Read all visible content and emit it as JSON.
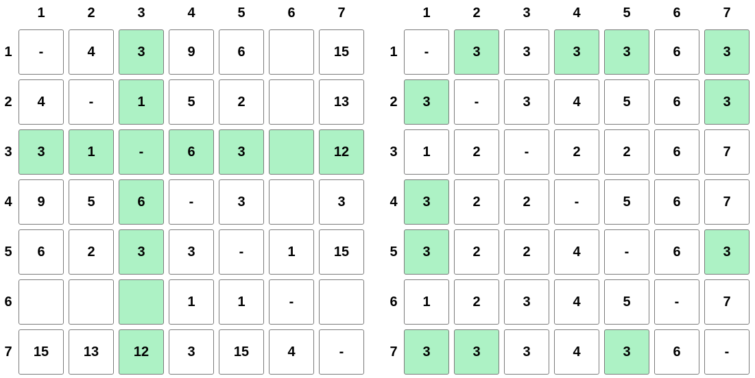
{
  "colors": {
    "highlight": "#adf2c5",
    "cell_bg": "#ffffff",
    "border": "#7a7a7a"
  },
  "matrices": [
    {
      "col_labels": [
        "1",
        "2",
        "3",
        "4",
        "5",
        "6",
        "7"
      ],
      "row_labels": [
        "1",
        "2",
        "3",
        "4",
        "5",
        "6",
        "7"
      ],
      "cells": [
        [
          {
            "v": "-",
            "h": false
          },
          {
            "v": "4",
            "h": false
          },
          {
            "v": "3",
            "h": true
          },
          {
            "v": "9",
            "h": false
          },
          {
            "v": "6",
            "h": false
          },
          {
            "v": "",
            "h": false
          },
          {
            "v": "15",
            "h": false
          }
        ],
        [
          {
            "v": "4",
            "h": false
          },
          {
            "v": "-",
            "h": false
          },
          {
            "v": "1",
            "h": true
          },
          {
            "v": "5",
            "h": false
          },
          {
            "v": "2",
            "h": false
          },
          {
            "v": "",
            "h": false
          },
          {
            "v": "13",
            "h": false
          }
        ],
        [
          {
            "v": "3",
            "h": true
          },
          {
            "v": "1",
            "h": true
          },
          {
            "v": "-",
            "h": true
          },
          {
            "v": "6",
            "h": true
          },
          {
            "v": "3",
            "h": true
          },
          {
            "v": "",
            "h": true
          },
          {
            "v": "12",
            "h": true
          }
        ],
        [
          {
            "v": "9",
            "h": false
          },
          {
            "v": "5",
            "h": false
          },
          {
            "v": "6",
            "h": true
          },
          {
            "v": "-",
            "h": false
          },
          {
            "v": "3",
            "h": false
          },
          {
            "v": "",
            "h": false
          },
          {
            "v": "3",
            "h": false
          }
        ],
        [
          {
            "v": "6",
            "h": false
          },
          {
            "v": "2",
            "h": false
          },
          {
            "v": "3",
            "h": true
          },
          {
            "v": "3",
            "h": false
          },
          {
            "v": "-",
            "h": false
          },
          {
            "v": "1",
            "h": false
          },
          {
            "v": "15",
            "h": false
          }
        ],
        [
          {
            "v": "",
            "h": false
          },
          {
            "v": "",
            "h": false
          },
          {
            "v": "",
            "h": true
          },
          {
            "v": "1",
            "h": false
          },
          {
            "v": "1",
            "h": false
          },
          {
            "v": "-",
            "h": false
          },
          {
            "v": "",
            "h": false
          }
        ],
        [
          {
            "v": "15",
            "h": false
          },
          {
            "v": "13",
            "h": false
          },
          {
            "v": "12",
            "h": true
          },
          {
            "v": "3",
            "h": false
          },
          {
            "v": "15",
            "h": false
          },
          {
            "v": "4",
            "h": false
          },
          {
            "v": "-",
            "h": false
          }
        ]
      ]
    },
    {
      "col_labels": [
        "1",
        "2",
        "3",
        "4",
        "5",
        "6",
        "7"
      ],
      "row_labels": [
        "1",
        "2",
        "3",
        "4",
        "5",
        "6",
        "7"
      ],
      "cells": [
        [
          {
            "v": "-",
            "h": false
          },
          {
            "v": "3",
            "h": true
          },
          {
            "v": "3",
            "h": false
          },
          {
            "v": "3",
            "h": true
          },
          {
            "v": "3",
            "h": true
          },
          {
            "v": "6",
            "h": false
          },
          {
            "v": "3",
            "h": true
          }
        ],
        [
          {
            "v": "3",
            "h": true
          },
          {
            "v": "-",
            "h": false
          },
          {
            "v": "3",
            "h": false
          },
          {
            "v": "4",
            "h": false
          },
          {
            "v": "5",
            "h": false
          },
          {
            "v": "6",
            "h": false
          },
          {
            "v": "3",
            "h": true
          }
        ],
        [
          {
            "v": "1",
            "h": false
          },
          {
            "v": "2",
            "h": false
          },
          {
            "v": "-",
            "h": false
          },
          {
            "v": "2",
            "h": false
          },
          {
            "v": "2",
            "h": false
          },
          {
            "v": "6",
            "h": false
          },
          {
            "v": "7",
            "h": false
          }
        ],
        [
          {
            "v": "3",
            "h": true
          },
          {
            "v": "2",
            "h": false
          },
          {
            "v": "2",
            "h": false
          },
          {
            "v": "-",
            "h": false
          },
          {
            "v": "5",
            "h": false
          },
          {
            "v": "6",
            "h": false
          },
          {
            "v": "7",
            "h": false
          }
        ],
        [
          {
            "v": "3",
            "h": true
          },
          {
            "v": "2",
            "h": false
          },
          {
            "v": "2",
            "h": false
          },
          {
            "v": "4",
            "h": false
          },
          {
            "v": "-",
            "h": false
          },
          {
            "v": "6",
            "h": false
          },
          {
            "v": "3",
            "h": true
          }
        ],
        [
          {
            "v": "1",
            "h": false
          },
          {
            "v": "2",
            "h": false
          },
          {
            "v": "3",
            "h": false
          },
          {
            "v": "4",
            "h": false
          },
          {
            "v": "5",
            "h": false
          },
          {
            "v": "-",
            "h": false
          },
          {
            "v": "7",
            "h": false
          }
        ],
        [
          {
            "v": "3",
            "h": true
          },
          {
            "v": "3",
            "h": true
          },
          {
            "v": "3",
            "h": false
          },
          {
            "v": "4",
            "h": false
          },
          {
            "v": "3",
            "h": true
          },
          {
            "v": "6",
            "h": false
          },
          {
            "v": "-",
            "h": false
          }
        ]
      ]
    }
  ]
}
